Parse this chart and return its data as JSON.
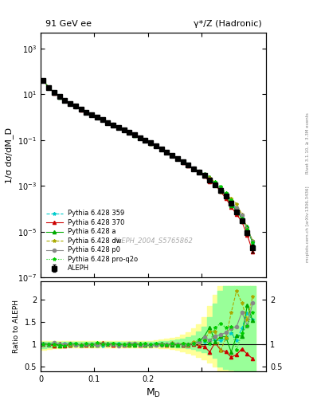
{
  "title_left": "91 GeV ee",
  "title_right": "γ*/Z (Hadronic)",
  "ylabel_main": "1/σ dσ/dM_D",
  "ylabel_ratio": "Ratio to ALEPH",
  "xlabel": "M_D",
  "right_label": "mcplots.cern.ch [arXiv:1306.3436]",
  "right_label2": "Rivet 3.1.10, ≥ 3.3M events",
  "watermark": "ALEPH_2004_S5765862",
  "ylim_main": [
    1e-07,
    5000.0
  ],
  "ylim_ratio": [
    0.4,
    2.4
  ],
  "xlim": [
    0.0,
    0.42
  ],
  "xticks": [
    0.0,
    0.1,
    0.2,
    0.3
  ],
  "legend_entries": [
    "ALEPH",
    "Pythia 6.428 359",
    "Pythia 6.428 370",
    "Pythia 6.428 a",
    "Pythia 6.428 dw",
    "Pythia 6.428 p0",
    "Pythia 6.428 pro-q2o"
  ],
  "aleph_x": [
    0.005,
    0.015,
    0.025,
    0.035,
    0.045,
    0.055,
    0.065,
    0.075,
    0.085,
    0.095,
    0.105,
    0.115,
    0.125,
    0.135,
    0.145,
    0.155,
    0.165,
    0.175,
    0.185,
    0.195,
    0.205,
    0.215,
    0.225,
    0.235,
    0.245,
    0.255,
    0.265,
    0.275,
    0.285,
    0.295,
    0.305,
    0.315,
    0.325,
    0.335,
    0.345,
    0.355,
    0.365,
    0.375,
    0.385,
    0.395
  ],
  "aleph_y": [
    40.0,
    20.0,
    12.0,
    8.0,
    5.5,
    4.0,
    3.0,
    2.2,
    1.7,
    1.3,
    1.0,
    0.77,
    0.6,
    0.47,
    0.37,
    0.29,
    0.22,
    0.17,
    0.13,
    0.1,
    0.075,
    0.055,
    0.041,
    0.03,
    0.022,
    0.016,
    0.011,
    0.008,
    0.0057,
    0.004,
    0.0028,
    0.0018,
    0.0011,
    0.00065,
    0.00035,
    0.00017,
    7.5e-05,
    3e-05,
    9e-06,
    2e-06
  ],
  "aleph_yerr": [
    2.0,
    0.8,
    0.5,
    0.3,
    0.2,
    0.15,
    0.1,
    0.08,
    0.06,
    0.05,
    0.04,
    0.03,
    0.02,
    0.018,
    0.014,
    0.011,
    0.009,
    0.007,
    0.005,
    0.004,
    0.003,
    0.002,
    0.0015,
    0.0012,
    0.001,
    0.0008,
    0.0006,
    0.0004,
    0.0003,
    0.0002,
    0.00015,
    0.0001,
    8e-05,
    6e-05,
    4e-05,
    2e-05,
    1e-05,
    5e-06,
    2e-06,
    8e-07
  ],
  "band_green_low": [
    0.92,
    0.93,
    0.94,
    0.95,
    0.95,
    0.96,
    0.96,
    0.97,
    0.97,
    0.97,
    0.97,
    0.97,
    0.97,
    0.97,
    0.97,
    0.97,
    0.97,
    0.97,
    0.97,
    0.97,
    0.97,
    0.97,
    0.96,
    0.96,
    0.95,
    0.94,
    0.93,
    0.91,
    0.89,
    0.86,
    0.83,
    0.78,
    0.7,
    0.5,
    0.45,
    0.43,
    0.4,
    0.4,
    0.4,
    0.4
  ],
  "band_green_high": [
    1.05,
    1.05,
    1.05,
    1.05,
    1.05,
    1.05,
    1.05,
    1.05,
    1.05,
    1.05,
    1.05,
    1.05,
    1.05,
    1.05,
    1.05,
    1.05,
    1.05,
    1.05,
    1.05,
    1.05,
    1.05,
    1.06,
    1.07,
    1.08,
    1.09,
    1.1,
    1.12,
    1.16,
    1.2,
    1.28,
    1.4,
    1.6,
    1.9,
    2.2,
    2.3,
    2.3,
    2.3,
    2.3,
    2.3,
    2.3
  ],
  "band_yellow_low": [
    0.88,
    0.9,
    0.91,
    0.92,
    0.93,
    0.93,
    0.94,
    0.94,
    0.94,
    0.94,
    0.94,
    0.94,
    0.94,
    0.94,
    0.94,
    0.94,
    0.94,
    0.94,
    0.94,
    0.94,
    0.94,
    0.93,
    0.92,
    0.91,
    0.89,
    0.87,
    0.85,
    0.81,
    0.77,
    0.72,
    0.66,
    0.59,
    0.5,
    0.42,
    0.4,
    0.38,
    0.35,
    0.35,
    0.35,
    0.35
  ],
  "band_yellow_high": [
    1.08,
    1.08,
    1.08,
    1.08,
    1.08,
    1.08,
    1.08,
    1.08,
    1.08,
    1.08,
    1.08,
    1.08,
    1.08,
    1.08,
    1.08,
    1.08,
    1.08,
    1.08,
    1.08,
    1.08,
    1.08,
    1.09,
    1.1,
    1.12,
    1.14,
    1.17,
    1.21,
    1.27,
    1.35,
    1.45,
    1.6,
    1.85,
    2.1,
    2.3,
    2.3,
    2.3,
    2.3,
    2.3,
    2.3,
    2.3
  ],
  "colors": {
    "aleph": "#000000",
    "p359": "#00cccc",
    "p370": "#cc0000",
    "pa": "#00aa00",
    "pdw": "#aaaa00",
    "pp0": "#888888",
    "pproq2o": "#00cc00"
  }
}
